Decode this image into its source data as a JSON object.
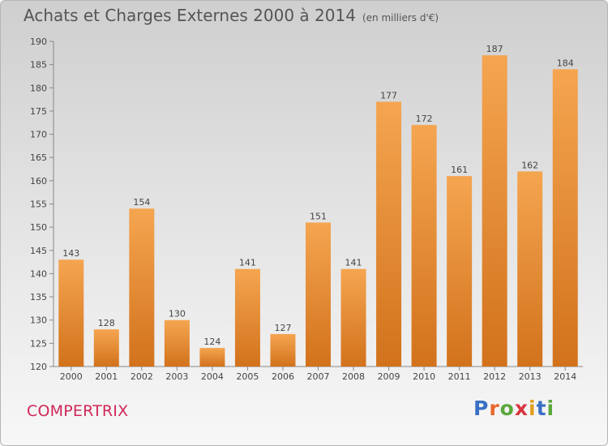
{
  "title": "Achats et Charges Externes 2000 à 2014",
  "unit": "(en milliers d'€)",
  "commune": "COMPERTRIX",
  "logo": {
    "letters": [
      "P",
      "r",
      "o",
      "x",
      "i",
      "t",
      "i"
    ],
    "colors": [
      "#3a6fc4",
      "#e8682a",
      "#5aa83c",
      "#d9343f",
      "#e0a01e",
      "#3a6fc4",
      "#5aa83c"
    ]
  },
  "colors": {
    "bar_light": "#f5a550",
    "bar_dark": "#d2721c"
  },
  "chart_data": {
    "type": "bar",
    "categories": [
      "2000",
      "2001",
      "2002",
      "2003",
      "2004",
      "2005",
      "2006",
      "2007",
      "2008",
      "2009",
      "2010",
      "2011",
      "2012",
      "2013",
      "2014"
    ],
    "values": [
      143,
      128,
      154,
      130,
      124,
      141,
      127,
      151,
      141,
      177,
      172,
      161,
      187,
      162,
      184
    ],
    "ylim": [
      120,
      190
    ],
    "yticks": [
      120,
      125,
      130,
      135,
      140,
      145,
      150,
      155,
      160,
      165,
      170,
      175,
      180,
      185,
      190
    ],
    "grid": false,
    "title": "Achats et Charges Externes 2000 à 2014",
    "xlabel": "",
    "ylabel": ""
  }
}
